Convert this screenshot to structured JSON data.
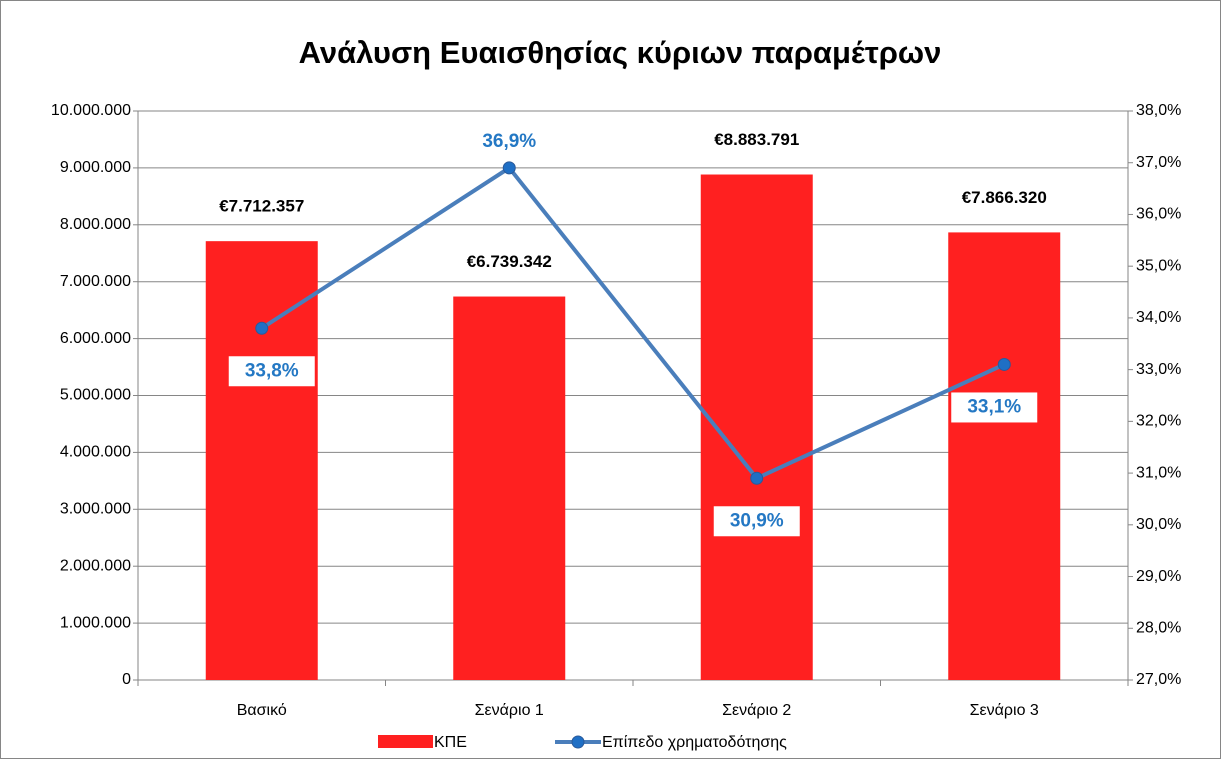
{
  "chart_data": {
    "type": "bar-line",
    "title": "Ανάλυση Ευαισθησίας κύριων παραμέτρων",
    "categories": [
      "Βασικό",
      "Σενάριο 1",
      "Σενάριο 2",
      "Σενάριο 3"
    ],
    "series": [
      {
        "name": "ΚΠΕ",
        "color": "#ff2020",
        "type": "bar",
        "values": [
          7712357,
          6739342,
          8883791,
          7866320
        ],
        "value_labels": [
          "€7.712.357",
          "€6.739.342",
          "€8.883.791",
          "€7.866.320"
        ]
      },
      {
        "name": "Επίπεδο χρηματοδότησης",
        "color": "#4a7ebb",
        "type": "line",
        "axis": "y2",
        "values": [
          33.8,
          36.9,
          30.9,
          33.1
        ],
        "value_labels": [
          "33,8%",
          "36,9%",
          "30,9%",
          "33,1%"
        ]
      }
    ],
    "ylim": [
      0,
      10000000
    ],
    "yticks": [
      0,
      {
        "value": 1000000,
        "label": "1.000.000"
      },
      {
        "value": 2000000,
        "label": "2.000.000"
      },
      {
        "value": 3000000,
        "label": "3.000.000"
      },
      {
        "value": 4000000,
        "label": "4.000.000"
      },
      {
        "value": 5000000,
        "label": "5.000.000"
      },
      {
        "value": 6000000,
        "label": "6.000.000"
      },
      {
        "value": 7000000,
        "label": "7.000.000"
      },
      {
        "value": 8000000,
        "label": "8.000.000"
      },
      {
        "value": 9000000,
        "label": "9.000.000"
      },
      {
        "value": 10000000,
        "label": "10.000.000"
      }
    ],
    "y2lim": [
      27,
      38
    ],
    "y2ticks": [
      {
        "value": 27,
        "label": "27,0%"
      },
      {
        "value": 28,
        "label": "28,0%"
      },
      {
        "value": 29,
        "label": "29,0%"
      },
      {
        "value": 30,
        "label": "30,0%"
      },
      {
        "value": 31,
        "label": "31,0%"
      },
      {
        "value": 32,
        "label": "32,0%"
      },
      {
        "value": 33,
        "label": "33,0%"
      },
      {
        "value": 34,
        "label": "34,0%"
      },
      {
        "value": 35,
        "label": "35,0%"
      },
      {
        "value": 36,
        "label": "36,0%"
      },
      {
        "value": 37,
        "label": "37,0%"
      },
      {
        "value": 38,
        "label": "38,0%"
      }
    ],
    "grid": true,
    "legend": "bottom"
  }
}
